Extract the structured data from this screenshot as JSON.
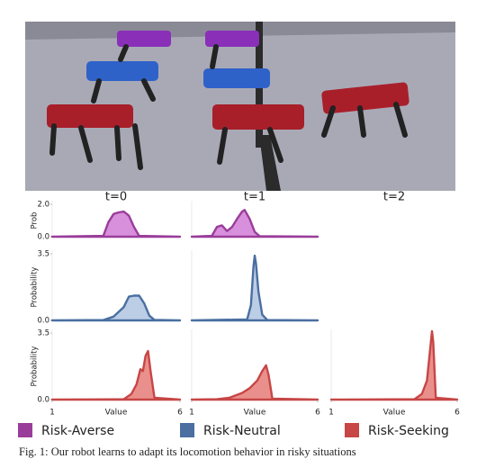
{
  "column_titles": [
    "t=0",
    "t=1",
    "t=2"
  ],
  "caption": "Fig. 1: Our robot learns to adapt its locomotion behavior in risky situations",
  "chart_data": [
    {
      "type": "area",
      "name": "Risk-Averse",
      "color": "#9a3d9a",
      "fill": "#d890dc",
      "ylabel": "Prob",
      "xlim": [
        1,
        6
      ],
      "ylim": [
        0,
        2
      ],
      "yticks": [
        {
          "value": 0,
          "label": "0.0"
        },
        {
          "value": 2,
          "label": "2.0"
        }
      ],
      "panels": [
        {
          "x": [
            1,
            3.0,
            3.2,
            3.4,
            3.6,
            3.8,
            4.0,
            4.2,
            4.4,
            6
          ],
          "values": [
            0,
            0.05,
            0.9,
            1.4,
            1.5,
            1.55,
            1.3,
            0.6,
            0.05,
            0
          ]
        },
        {
          "x": [
            1,
            1.8,
            2.0,
            2.2,
            2.4,
            2.6,
            2.8,
            3.0,
            3.1,
            3.3,
            3.5,
            3.7,
            6
          ],
          "values": [
            0,
            0.05,
            0.6,
            0.7,
            0.35,
            0.6,
            1.1,
            1.55,
            1.65,
            1.1,
            0.3,
            0.03,
            0
          ]
        },
        null
      ]
    },
    {
      "type": "area",
      "name": "Risk-Neutral",
      "color": "#4a6fa0",
      "fill": "#bccde6",
      "ylabel": "Probability",
      "xlim": [
        1,
        6
      ],
      "ylim": [
        0,
        3.5
      ],
      "yticks": [
        {
          "value": 0,
          "label": "0.0"
        },
        3.5
      ],
      "panels": [
        {
          "x": [
            1,
            3.0,
            3.4,
            3.8,
            4.0,
            4.2,
            4.4,
            4.6,
            4.8,
            5.0,
            6
          ],
          "values": [
            0,
            0.02,
            0.2,
            0.7,
            1.25,
            1.3,
            1.3,
            0.9,
            0.25,
            0.03,
            0
          ]
        },
        {
          "x": [
            1,
            3.2,
            3.35,
            3.45,
            3.5,
            3.55,
            3.65,
            3.8,
            4.0,
            6
          ],
          "values": [
            0,
            0.05,
            0.8,
            2.8,
            3.4,
            3.0,
            1.5,
            0.3,
            0.02,
            0
          ]
        },
        null
      ]
    },
    {
      "type": "area",
      "name": "Risk-Seeking",
      "color": "#c74646",
      "fill": "#ea908c",
      "ylabel": "Probability",
      "xlabel": "Value",
      "xlim": [
        1,
        6
      ],
      "xticks": [
        1,
        6
      ],
      "ylim": [
        0,
        3.5
      ],
      "yticks": [
        {
          "value": 0,
          "label": "0.0"
        },
        3.5
      ],
      "panels": [
        {
          "x": [
            1,
            3.8,
            4.1,
            4.3,
            4.45,
            4.55,
            4.65,
            4.75,
            4.85,
            5.0,
            6
          ],
          "values": [
            0,
            0.02,
            0.3,
            0.8,
            1.6,
            1.5,
            2.3,
            2.55,
            1.5,
            0.1,
            0
          ]
        },
        {
          "x": [
            1,
            2.0,
            2.5,
            3.0,
            3.3,
            3.6,
            3.8,
            3.95,
            4.05,
            4.2,
            6
          ],
          "values": [
            0,
            0.02,
            0.1,
            0.35,
            0.6,
            1.0,
            1.5,
            1.8,
            1.3,
            0.05,
            0
          ]
        },
        {
          "x": [
            1,
            4.3,
            4.6,
            4.8,
            4.9,
            5.0,
            5.05,
            5.15,
            6
          ],
          "values": [
            0,
            0.02,
            0.3,
            1.0,
            2.3,
            3.6,
            3.0,
            0.1,
            0
          ]
        }
      ]
    }
  ]
}
